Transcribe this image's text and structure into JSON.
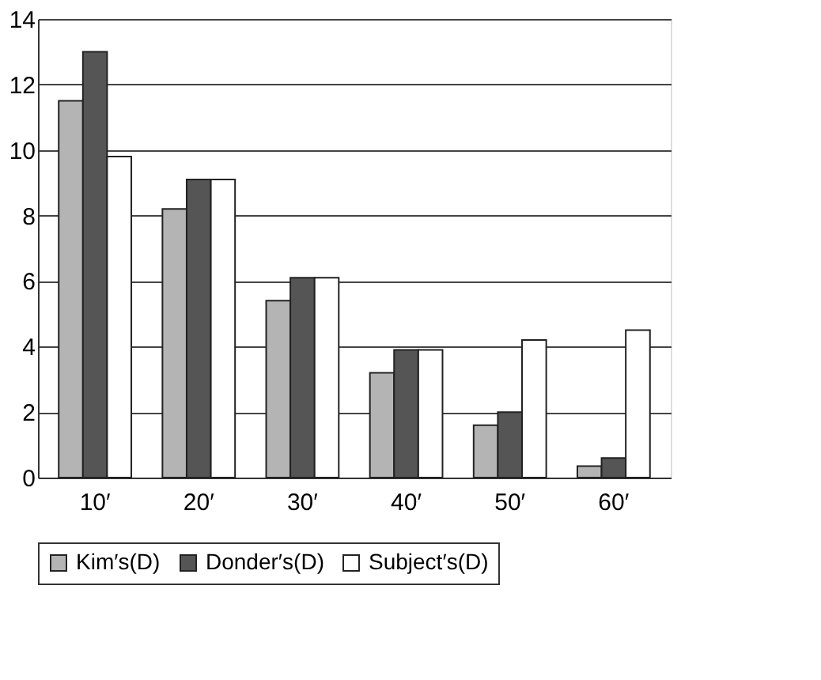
{
  "chart_data": {
    "type": "bar",
    "categories": [
      "10′",
      "20′",
      "30′",
      "40′",
      "50′",
      "60′"
    ],
    "series": [
      {
        "name": "Kim′s(D)",
        "color": "#b4b4b4",
        "values": [
          11.5,
          8.2,
          5.4,
          3.2,
          1.6,
          0.35
        ]
      },
      {
        "name": "Donder′s(D)",
        "color": "#555555",
        "values": [
          13.0,
          9.1,
          6.1,
          3.9,
          2.0,
          0.6
        ]
      },
      {
        "name": "Subject′s(D)",
        "color": "#ffffff",
        "values": [
          9.8,
          9.1,
          6.1,
          3.9,
          4.2,
          4.5
        ]
      }
    ],
    "ylim": [
      0,
      14
    ],
    "yticks": [
      0,
      2,
      4,
      6,
      8,
      10,
      12,
      14
    ],
    "grid": "y",
    "legend": "bottom"
  }
}
